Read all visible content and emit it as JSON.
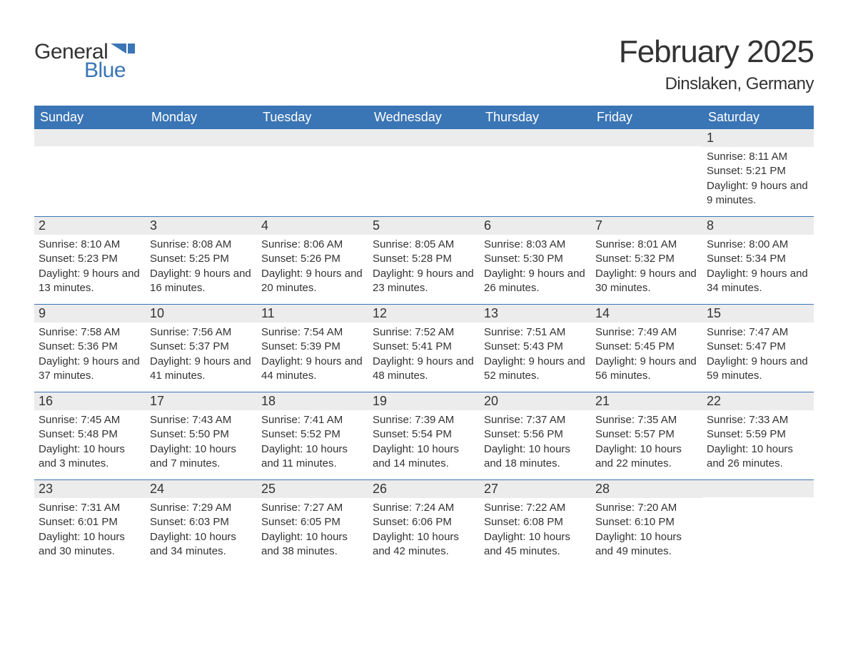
{
  "logo": {
    "text_general": "General",
    "text_blue": "Blue",
    "flag_color": "#3a75b5"
  },
  "title": {
    "month_year": "February 2025",
    "location": "Dinslaken, Germany"
  },
  "calendar": {
    "header_bg": "#3a75b5",
    "header_fg": "#ffffff",
    "daynum_bg": "#ececec",
    "week_border": "#3a75b5",
    "columns": [
      "Sunday",
      "Monday",
      "Tuesday",
      "Wednesday",
      "Thursday",
      "Friday",
      "Saturday"
    ],
    "weeks": [
      [
        {
          "num": "",
          "sunrise": "",
          "sunset": "",
          "daylight": ""
        },
        {
          "num": "",
          "sunrise": "",
          "sunset": "",
          "daylight": ""
        },
        {
          "num": "",
          "sunrise": "",
          "sunset": "",
          "daylight": ""
        },
        {
          "num": "",
          "sunrise": "",
          "sunset": "",
          "daylight": ""
        },
        {
          "num": "",
          "sunrise": "",
          "sunset": "",
          "daylight": ""
        },
        {
          "num": "",
          "sunrise": "",
          "sunset": "",
          "daylight": ""
        },
        {
          "num": "1",
          "sunrise": "Sunrise: 8:11 AM",
          "sunset": "Sunset: 5:21 PM",
          "daylight": "Daylight: 9 hours and 9 minutes."
        }
      ],
      [
        {
          "num": "2",
          "sunrise": "Sunrise: 8:10 AM",
          "sunset": "Sunset: 5:23 PM",
          "daylight": "Daylight: 9 hours and 13 minutes."
        },
        {
          "num": "3",
          "sunrise": "Sunrise: 8:08 AM",
          "sunset": "Sunset: 5:25 PM",
          "daylight": "Daylight: 9 hours and 16 minutes."
        },
        {
          "num": "4",
          "sunrise": "Sunrise: 8:06 AM",
          "sunset": "Sunset: 5:26 PM",
          "daylight": "Daylight: 9 hours and 20 minutes."
        },
        {
          "num": "5",
          "sunrise": "Sunrise: 8:05 AM",
          "sunset": "Sunset: 5:28 PM",
          "daylight": "Daylight: 9 hours and 23 minutes."
        },
        {
          "num": "6",
          "sunrise": "Sunrise: 8:03 AM",
          "sunset": "Sunset: 5:30 PM",
          "daylight": "Daylight: 9 hours and 26 minutes."
        },
        {
          "num": "7",
          "sunrise": "Sunrise: 8:01 AM",
          "sunset": "Sunset: 5:32 PM",
          "daylight": "Daylight: 9 hours and 30 minutes."
        },
        {
          "num": "8",
          "sunrise": "Sunrise: 8:00 AM",
          "sunset": "Sunset: 5:34 PM",
          "daylight": "Daylight: 9 hours and 34 minutes."
        }
      ],
      [
        {
          "num": "9",
          "sunrise": "Sunrise: 7:58 AM",
          "sunset": "Sunset: 5:36 PM",
          "daylight": "Daylight: 9 hours and 37 minutes."
        },
        {
          "num": "10",
          "sunrise": "Sunrise: 7:56 AM",
          "sunset": "Sunset: 5:37 PM",
          "daylight": "Daylight: 9 hours and 41 minutes."
        },
        {
          "num": "11",
          "sunrise": "Sunrise: 7:54 AM",
          "sunset": "Sunset: 5:39 PM",
          "daylight": "Daylight: 9 hours and 44 minutes."
        },
        {
          "num": "12",
          "sunrise": "Sunrise: 7:52 AM",
          "sunset": "Sunset: 5:41 PM",
          "daylight": "Daylight: 9 hours and 48 minutes."
        },
        {
          "num": "13",
          "sunrise": "Sunrise: 7:51 AM",
          "sunset": "Sunset: 5:43 PM",
          "daylight": "Daylight: 9 hours and 52 minutes."
        },
        {
          "num": "14",
          "sunrise": "Sunrise: 7:49 AM",
          "sunset": "Sunset: 5:45 PM",
          "daylight": "Daylight: 9 hours and 56 minutes."
        },
        {
          "num": "15",
          "sunrise": "Sunrise: 7:47 AM",
          "sunset": "Sunset: 5:47 PM",
          "daylight": "Daylight: 9 hours and 59 minutes."
        }
      ],
      [
        {
          "num": "16",
          "sunrise": "Sunrise: 7:45 AM",
          "sunset": "Sunset: 5:48 PM",
          "daylight": "Daylight: 10 hours and 3 minutes."
        },
        {
          "num": "17",
          "sunrise": "Sunrise: 7:43 AM",
          "sunset": "Sunset: 5:50 PM",
          "daylight": "Daylight: 10 hours and 7 minutes."
        },
        {
          "num": "18",
          "sunrise": "Sunrise: 7:41 AM",
          "sunset": "Sunset: 5:52 PM",
          "daylight": "Daylight: 10 hours and 11 minutes."
        },
        {
          "num": "19",
          "sunrise": "Sunrise: 7:39 AM",
          "sunset": "Sunset: 5:54 PM",
          "daylight": "Daylight: 10 hours and 14 minutes."
        },
        {
          "num": "20",
          "sunrise": "Sunrise: 7:37 AM",
          "sunset": "Sunset: 5:56 PM",
          "daylight": "Daylight: 10 hours and 18 minutes."
        },
        {
          "num": "21",
          "sunrise": "Sunrise: 7:35 AM",
          "sunset": "Sunset: 5:57 PM",
          "daylight": "Daylight: 10 hours and 22 minutes."
        },
        {
          "num": "22",
          "sunrise": "Sunrise: 7:33 AM",
          "sunset": "Sunset: 5:59 PM",
          "daylight": "Daylight: 10 hours and 26 minutes."
        }
      ],
      [
        {
          "num": "23",
          "sunrise": "Sunrise: 7:31 AM",
          "sunset": "Sunset: 6:01 PM",
          "daylight": "Daylight: 10 hours and 30 minutes."
        },
        {
          "num": "24",
          "sunrise": "Sunrise: 7:29 AM",
          "sunset": "Sunset: 6:03 PM",
          "daylight": "Daylight: 10 hours and 34 minutes."
        },
        {
          "num": "25",
          "sunrise": "Sunrise: 7:27 AM",
          "sunset": "Sunset: 6:05 PM",
          "daylight": "Daylight: 10 hours and 38 minutes."
        },
        {
          "num": "26",
          "sunrise": "Sunrise: 7:24 AM",
          "sunset": "Sunset: 6:06 PM",
          "daylight": "Daylight: 10 hours and 42 minutes."
        },
        {
          "num": "27",
          "sunrise": "Sunrise: 7:22 AM",
          "sunset": "Sunset: 6:08 PM",
          "daylight": "Daylight: 10 hours and 45 minutes."
        },
        {
          "num": "28",
          "sunrise": "Sunrise: 7:20 AM",
          "sunset": "Sunset: 6:10 PM",
          "daylight": "Daylight: 10 hours and 49 minutes."
        },
        {
          "num": "",
          "sunrise": "",
          "sunset": "",
          "daylight": ""
        }
      ]
    ]
  }
}
